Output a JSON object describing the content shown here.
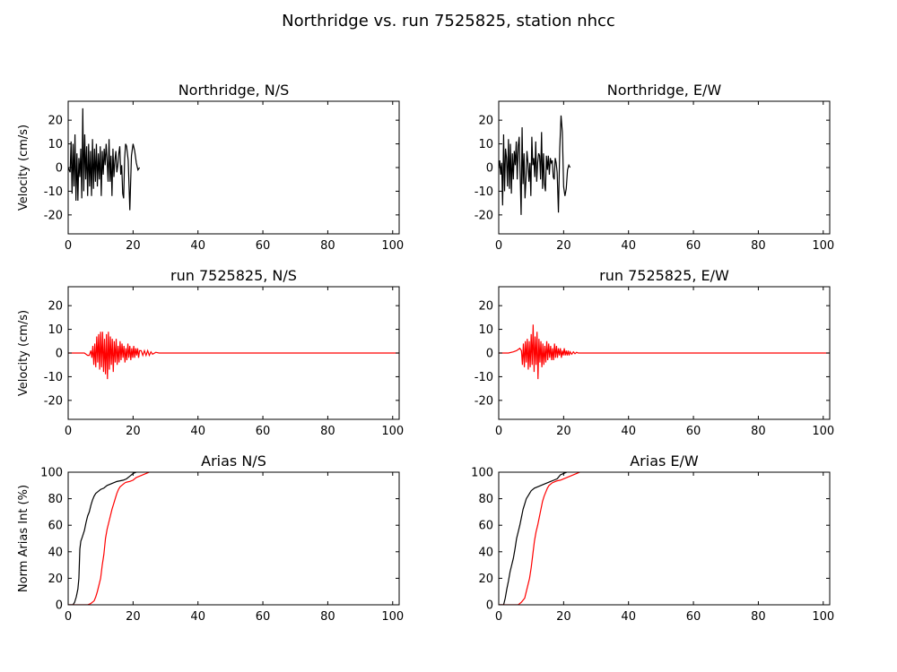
{
  "figure_title": "Northridge vs. run 7525825, station nhcc",
  "colors": {
    "recorded": "#000000",
    "simulated": "#ff0000"
  },
  "chart_data": [
    {
      "type": "line",
      "title": "Northridge, N/S",
      "xlabel": "",
      "ylabel": "Velocity (cm/s)",
      "xlim": [
        0,
        102
      ],
      "ylim": [
        -28,
        28
      ],
      "xticks": [
        0,
        20,
        40,
        60,
        80,
        100
      ],
      "yticks": [
        20,
        10,
        0,
        -10,
        -20
      ],
      "series": [
        {
          "color": "#000000",
          "x": [
            0,
            0.3,
            0.6,
            0.9,
            1.2,
            1.5,
            1.8,
            2.1,
            2.4,
            2.7,
            3.0,
            3.3,
            3.6,
            3.9,
            4.2,
            4.5,
            4.8,
            5.1,
            5.4,
            5.7,
            6.0,
            6.3,
            6.6,
            6.9,
            7.2,
            7.5,
            7.8,
            8.1,
            8.4,
            8.7,
            9.0,
            9.3,
            9.6,
            9.9,
            10.2,
            10.5,
            10.8,
            11.1,
            11.4,
            11.7,
            12.0,
            12.3,
            12.6,
            12.9,
            13.2,
            13.5,
            13.8,
            14.1,
            14.4,
            14.7,
            15.0,
            15.3,
            15.6,
            15.9,
            16.2,
            16.5,
            16.8,
            17.1,
            17.4,
            17.7,
            18.0,
            18.5,
            19.0,
            19.5,
            20.0,
            20.5,
            21.0,
            21.5,
            22.0
          ],
          "y": [
            0,
            -1,
            -2,
            11,
            -11,
            10,
            -8,
            14,
            -14,
            6,
            -14,
            4,
            -4,
            8,
            -13,
            25,
            -10,
            14,
            -5,
            9,
            -12,
            10,
            -8,
            7,
            -12,
            12,
            -9,
            8,
            -6,
            10,
            -8,
            6,
            -5,
            9,
            -12,
            7,
            -3,
            8,
            1,
            10,
            3,
            -6,
            12,
            -6,
            5,
            -12,
            8,
            -4,
            3,
            7,
            -2,
            1,
            6,
            9,
            -3,
            1,
            -11,
            -13,
            4,
            10,
            9,
            3,
            -18,
            5,
            10,
            7,
            2,
            -1,
            0
          ]
        }
      ]
    },
    {
      "type": "line",
      "title": "Northridge, E/W",
      "xlabel": "",
      "ylabel": "",
      "xlim": [
        0,
        102
      ],
      "ylim": [
        -28,
        28
      ],
      "xticks": [
        0,
        20,
        40,
        60,
        80,
        100
      ],
      "yticks": [
        20,
        10,
        0,
        -10,
        -20
      ],
      "series": [
        {
          "color": "#000000",
          "x": [
            0,
            0.3,
            0.6,
            0.9,
            1.2,
            1.5,
            1.8,
            2.1,
            2.4,
            2.7,
            3.0,
            3.3,
            3.6,
            3.9,
            4.2,
            4.5,
            4.8,
            5.1,
            5.4,
            5.7,
            6.0,
            6.3,
            6.6,
            6.9,
            7.2,
            7.5,
            7.8,
            8.1,
            8.4,
            8.7,
            9.0,
            9.3,
            9.6,
            9.9,
            10.2,
            10.5,
            10.8,
            11.1,
            11.4,
            11.7,
            12.0,
            12.3,
            12.6,
            12.9,
            13.2,
            13.5,
            13.8,
            14.1,
            14.4,
            14.7,
            15.0,
            15.3,
            15.6,
            15.9,
            16.2,
            16.5,
            16.8,
            17.1,
            17.4,
            17.7,
            18.0,
            18.4,
            18.8,
            19.2,
            19.6,
            20.0,
            20.4,
            20.8,
            21.2,
            21.6,
            22.0
          ],
          "y": [
            0,
            3,
            -3,
            2,
            -16,
            14,
            -10,
            8,
            4,
            -8,
            12,
            -9,
            10,
            -11,
            6,
            -5,
            7,
            1,
            11,
            -5,
            9,
            13,
            -3,
            -20,
            17,
            -7,
            6,
            -13,
            -5,
            7,
            2,
            -6,
            2,
            -12,
            13,
            1,
            4,
            -4,
            11,
            -6,
            2,
            6,
            5,
            -5,
            15,
            -9,
            6,
            -7,
            -10,
            5,
            -1,
            5,
            -3,
            4,
            2,
            3,
            -4,
            -5,
            4,
            2,
            -2,
            -19,
            8,
            22,
            15,
            -8,
            -12,
            -9,
            -1,
            1,
            0
          ]
        }
      ]
    },
    {
      "type": "line",
      "title": "run 7525825, N/S",
      "xlabel": "",
      "ylabel": "Velocity (cm/s)",
      "xlim": [
        0,
        102
      ],
      "ylim": [
        -28,
        28
      ],
      "xticks": [
        0,
        20,
        40,
        60,
        80,
        100
      ],
      "yticks": [
        20,
        10,
        0,
        -10,
        -20
      ],
      "series": [
        {
          "color": "#ff0000",
          "x": [
            0,
            5,
            6,
            6.5,
            7,
            7.3,
            7.6,
            7.9,
            8.2,
            8.5,
            8.8,
            9.1,
            9.4,
            9.7,
            10.0,
            10.3,
            10.6,
            10.9,
            11.2,
            11.5,
            11.8,
            12.1,
            12.4,
            12.7,
            13.0,
            13.3,
            13.6,
            13.9,
            14.2,
            14.5,
            14.8,
            15.1,
            15.4,
            15.7,
            16.0,
            16.3,
            16.6,
            16.9,
            17.2,
            17.5,
            17.8,
            18.1,
            18.4,
            18.7,
            19.0,
            19.3,
            19.6,
            19.9,
            20.2,
            20.5,
            20.8,
            21.1,
            21.4,
            21.7,
            22.0,
            22.5,
            23.0,
            23.5,
            24.0,
            24.5,
            25.0,
            25.5,
            26.0,
            27,
            28,
            30,
            40,
            60,
            80,
            100,
            102
          ],
          "y": [
            0,
            0,
            -1,
            -1,
            1,
            -2,
            3,
            -5,
            4,
            -6,
            7,
            -4,
            8,
            -7,
            9,
            -6,
            9,
            -8,
            6,
            -9,
            8,
            -11,
            9,
            -7,
            7,
            -5,
            6,
            -8,
            5,
            -4,
            6,
            -5,
            3,
            -4,
            5,
            -3,
            4,
            -2,
            3,
            -4,
            2,
            -3,
            4,
            -2,
            3,
            -3,
            2,
            -2,
            3,
            -2,
            2,
            -1,
            2,
            -2,
            1,
            1,
            -1,
            1,
            -1,
            1,
            -1,
            0.5,
            -0.5,
            0.3,
            0,
            0,
            0,
            0,
            0,
            0,
            0
          ]
        }
      ]
    },
    {
      "type": "line",
      "title": "run 7525825, E/W",
      "xlabel": "",
      "ylabel": "",
      "xlim": [
        0,
        102
      ],
      "ylim": [
        -28,
        28
      ],
      "xticks": [
        0,
        20,
        40,
        60,
        80,
        100
      ],
      "yticks": [
        20,
        10,
        0,
        -10,
        -20
      ],
      "series": [
        {
          "color": "#ff0000",
          "x": [
            0,
            3,
            4.5,
            5.5,
            6.5,
            7,
            7.3,
            7.6,
            7.9,
            8.2,
            8.5,
            8.8,
            9.1,
            9.4,
            9.7,
            10.0,
            10.3,
            10.6,
            10.9,
            11.2,
            11.5,
            11.8,
            12.1,
            12.4,
            12.7,
            13.0,
            13.3,
            13.6,
            13.9,
            14.2,
            14.5,
            14.8,
            15.1,
            15.4,
            15.7,
            16.0,
            16.3,
            16.6,
            16.9,
            17.2,
            17.5,
            17.8,
            18.1,
            18.4,
            18.7,
            19.0,
            19.3,
            19.6,
            19.9,
            20.2,
            20.5,
            20.8,
            21.1,
            21.4,
            21.7,
            22.0,
            22.5,
            23.0,
            23.5,
            24.0,
            24.5,
            25,
            26,
            27,
            30,
            40,
            60,
            80,
            100,
            102
          ],
          "y": [
            0,
            0,
            0.5,
            1,
            2,
            1,
            -5,
            4,
            -6,
            5,
            -4,
            6,
            -7,
            5,
            -6,
            8,
            -5,
            12,
            -8,
            7,
            -5,
            9,
            -11,
            6,
            -4,
            5,
            -6,
            4,
            -5,
            3,
            -4,
            5,
            -3,
            4,
            -2,
            3,
            -3,
            2,
            -3,
            4,
            -2,
            3,
            -2,
            2,
            -1,
            2,
            -2,
            1,
            -1,
            2,
            -1,
            1,
            -1,
            1,
            -1,
            0.5,
            -0.5,
            0.5,
            -0.3,
            0.3,
            0,
            0,
            0,
            0,
            0,
            0,
            0,
            0,
            0,
            0
          ]
        }
      ]
    },
    {
      "type": "line",
      "title": "Arias N/S",
      "xlabel": "",
      "ylabel": "Norm Arias Int (%)",
      "xlim": [
        0,
        102
      ],
      "ylim": [
        0,
        100
      ],
      "xticks": [
        0,
        20,
        40,
        60,
        80,
        100
      ],
      "yticks": [
        100,
        80,
        60,
        40,
        20,
        0
      ],
      "series": [
        {
          "color": "#000000",
          "x": [
            0,
            1.5,
            2.0,
            2.5,
            3.0,
            3.3,
            3.6,
            3.9,
            4.2,
            4.6,
            5.0,
            5.5,
            6.0,
            6.5,
            7.0,
            7.5,
            8.0,
            8.5,
            9.0,
            10,
            11,
            12,
            13,
            14,
            15,
            16,
            17,
            18,
            19,
            20,
            21
          ],
          "y": [
            0,
            0,
            2,
            6,
            12,
            20,
            42,
            48,
            50,
            53,
            56,
            62,
            67,
            70,
            75,
            79,
            82,
            84,
            85,
            87,
            88,
            90,
            91,
            92,
            93,
            93.5,
            94,
            95,
            97,
            99,
            100
          ]
        },
        {
          "color": "#ff0000",
          "x": [
            0,
            6,
            7,
            8,
            8.5,
            9,
            9.5,
            10,
            10.5,
            11,
            11.5,
            12,
            12.5,
            13,
            13.5,
            14,
            14.5,
            15,
            15.5,
            16,
            16.5,
            17,
            17.5,
            18,
            19,
            20,
            21,
            22,
            23,
            24,
            25
          ],
          "y": [
            0,
            0,
            1,
            3,
            6,
            10,
            15,
            20,
            30,
            38,
            50,
            57,
            62,
            67,
            72,
            76,
            80,
            84,
            87,
            89,
            90,
            91,
            92,
            92.5,
            93,
            94,
            96,
            97,
            98,
            99,
            100
          ]
        }
      ]
    },
    {
      "type": "line",
      "title": "Arias E/W",
      "xlabel": "",
      "ylabel": "",
      "xlim": [
        0,
        102
      ],
      "ylim": [
        0,
        100
      ],
      "xticks": [
        0,
        20,
        40,
        60,
        80,
        100
      ],
      "yticks": [
        100,
        80,
        60,
        40,
        20,
        0
      ],
      "series": [
        {
          "color": "#000000",
          "x": [
            0,
            1.5,
            2.0,
            2.5,
            3.0,
            3.5,
            4.0,
            4.5,
            5.0,
            5.5,
            6.0,
            6.5,
            7.0,
            7.5,
            8.0,
            8.5,
            9.0,
            9.5,
            10,
            11,
            12,
            13,
            14,
            15,
            16,
            17,
            18,
            19,
            20,
            21
          ],
          "y": [
            0,
            0,
            5,
            12,
            18,
            25,
            30,
            35,
            42,
            50,
            55,
            60,
            66,
            72,
            76,
            80,
            82,
            84,
            86,
            88,
            89,
            90,
            91,
            92,
            93,
            94,
            95,
            98,
            99,
            100
          ]
        },
        {
          "color": "#ff0000",
          "x": [
            0,
            6,
            7,
            8,
            8.5,
            9,
            9.5,
            10,
            10.5,
            11,
            11.5,
            12,
            12.5,
            13,
            13.5,
            14,
            14.5,
            15,
            15.5,
            16,
            16.5,
            17,
            17.5,
            18,
            19,
            20,
            21,
            22,
            23,
            24,
            25
          ],
          "y": [
            0,
            0,
            2,
            5,
            10,
            15,
            20,
            28,
            38,
            48,
            55,
            60,
            66,
            72,
            78,
            82,
            85,
            88,
            90,
            91,
            92,
            92.5,
            93,
            93.5,
            94,
            95,
            96,
            97,
            98,
            99,
            100
          ]
        }
      ]
    }
  ]
}
